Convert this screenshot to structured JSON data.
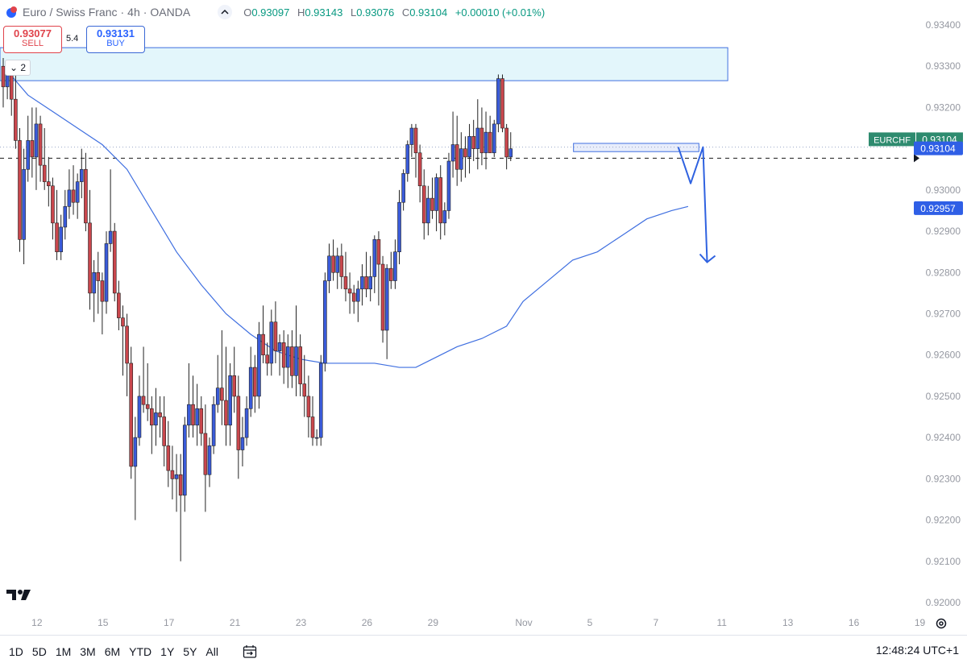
{
  "header": {
    "symbol": "Euro / Swiss Franc",
    "interval": "4h",
    "exchange": "OANDA",
    "open_label": "O",
    "open": "0.93097",
    "high_label": "H",
    "high": "0.93143",
    "low_label": "L",
    "low": "0.93076",
    "close_label": "C",
    "close": "0.93104",
    "change": "+0.00010 (+0.01%)"
  },
  "trade": {
    "sell_price": "0.93077",
    "sell_label": "SELL",
    "spread": "5.4",
    "buy_price": "0.93131",
    "buy_label": "BUY"
  },
  "collapse_count": "2",
  "bottom": {
    "ranges": [
      "1D",
      "5D",
      "1M",
      "3M",
      "6M",
      "YTD",
      "1Y",
      "5Y",
      "All"
    ],
    "clock": "12:48:24 UTC+1"
  },
  "colors": {
    "up": "#3a5bd9",
    "down": "#c9474d",
    "ma": "#3f6fe0",
    "zone": "#e3f6fb",
    "zone_border": "#3f6fe0",
    "symbol_label": "#2e8b6f",
    "price_label": "#2f5fe6"
  },
  "chart_data": {
    "type": "candlestick",
    "y_axis": {
      "range": [
        0.9195,
        0.9345
      ],
      "ticks": [
        "0.93400",
        "0.93300",
        "0.93200",
        "0.93100",
        "0.93000",
        "0.92900",
        "0.92800",
        "0.92700",
        "0.92600",
        "0.92500",
        "0.92400",
        "0.92300",
        "0.92200",
        "0.92100",
        "0.92000"
      ]
    },
    "x_axis": {
      "ticks": [
        {
          "label": "12",
          "i": 7
        },
        {
          "label": "15",
          "i": 23
        },
        {
          "label": "17",
          "i": 39
        },
        {
          "label": "21",
          "i": 55
        },
        {
          "label": "23",
          "i": 71
        },
        {
          "label": "26",
          "i": 87
        },
        {
          "label": "29",
          "i": 103
        },
        {
          "label": "Nov",
          "i": 125
        },
        {
          "label": "5",
          "i": 141
        },
        {
          "label": "7",
          "i": 157
        },
        {
          "label": "11",
          "i": 173
        },
        {
          "label": "13",
          "i": 189
        },
        {
          "label": "16",
          "i": 205
        },
        {
          "label": "19",
          "i": 221
        }
      ]
    },
    "candles": [
      [
        0.933,
        0.9332,
        0.932,
        0.9325
      ],
      [
        0.9325,
        0.9331,
        0.9322,
        0.9328
      ],
      [
        0.9328,
        0.9331,
        0.9318,
        0.9322
      ],
      [
        0.9322,
        0.9328,
        0.931,
        0.9312
      ],
      [
        0.9312,
        0.9315,
        0.9285,
        0.9288
      ],
      [
        0.9288,
        0.931,
        0.9282,
        0.9305
      ],
      [
        0.9305,
        0.9318,
        0.9302,
        0.9312
      ],
      [
        0.9312,
        0.932,
        0.9303,
        0.9308
      ],
      [
        0.9308,
        0.932,
        0.93,
        0.9316
      ],
      [
        0.9316,
        0.9318,
        0.9302,
        0.9306
      ],
      [
        0.9306,
        0.9315,
        0.93,
        0.9302
      ],
      [
        0.9302,
        0.9308,
        0.9296,
        0.9301
      ],
      [
        0.9301,
        0.9303,
        0.9288,
        0.9292
      ],
      [
        0.9292,
        0.93,
        0.9283,
        0.9285
      ],
      [
        0.9285,
        0.9294,
        0.9283,
        0.9291
      ],
      [
        0.9291,
        0.93,
        0.9288,
        0.9296
      ],
      [
        0.9296,
        0.9305,
        0.9293,
        0.93
      ],
      [
        0.93,
        0.9306,
        0.9294,
        0.9297
      ],
      [
        0.9297,
        0.9304,
        0.9293,
        0.9302
      ],
      [
        0.9302,
        0.931,
        0.9298,
        0.9305
      ],
      [
        0.9305,
        0.9309,
        0.929,
        0.9292
      ],
      [
        0.9292,
        0.93,
        0.9271,
        0.9275
      ],
      [
        0.9275,
        0.9283,
        0.9268,
        0.928
      ],
      [
        0.928,
        0.9285,
        0.927,
        0.9278
      ],
      [
        0.9278,
        0.928,
        0.9265,
        0.9273
      ],
      [
        0.9273,
        0.929,
        0.927,
        0.9287
      ],
      [
        0.9287,
        0.9305,
        0.9285,
        0.929
      ],
      [
        0.929,
        0.9292,
        0.9273,
        0.9275
      ],
      [
        0.9275,
        0.9278,
        0.9266,
        0.9269
      ],
      [
        0.9269,
        0.9272,
        0.9255,
        0.9267
      ],
      [
        0.9267,
        0.927,
        0.925,
        0.9258
      ],
      [
        0.9258,
        0.9262,
        0.923,
        0.9233
      ],
      [
        0.9233,
        0.9245,
        0.922,
        0.924
      ],
      [
        0.924,
        0.9255,
        0.9238,
        0.925
      ],
      [
        0.925,
        0.9262,
        0.9246,
        0.9248
      ],
      [
        0.9248,
        0.9258,
        0.9244,
        0.9247
      ],
      [
        0.9247,
        0.925,
        0.9236,
        0.9243
      ],
      [
        0.9243,
        0.9252,
        0.9238,
        0.9246
      ],
      [
        0.9246,
        0.925,
        0.924,
        0.9245
      ],
      [
        0.9245,
        0.925,
        0.9233,
        0.9238
      ],
      [
        0.9238,
        0.9244,
        0.9228,
        0.9232
      ],
      [
        0.9232,
        0.9238,
        0.9225,
        0.923
      ],
      [
        0.923,
        0.9236,
        0.9222,
        0.9231
      ],
      [
        0.9231,
        0.9236,
        0.921,
        0.9226
      ],
      [
        0.9226,
        0.9245,
        0.9222,
        0.9243
      ],
      [
        0.9243,
        0.9258,
        0.924,
        0.9248
      ],
      [
        0.9248,
        0.9255,
        0.924,
        0.9243
      ],
      [
        0.9243,
        0.9253,
        0.9238,
        0.9247
      ],
      [
        0.9247,
        0.925,
        0.9238,
        0.9241
      ],
      [
        0.9241,
        0.9248,
        0.9222,
        0.9231
      ],
      [
        0.9231,
        0.924,
        0.9228,
        0.9238
      ],
      [
        0.9238,
        0.925,
        0.9236,
        0.9248
      ],
      [
        0.9248,
        0.926,
        0.9246,
        0.9252
      ],
      [
        0.9252,
        0.9266,
        0.9243,
        0.9249
      ],
      [
        0.9249,
        0.9262,
        0.9238,
        0.9243
      ],
      [
        0.9243,
        0.9258,
        0.9238,
        0.9255
      ],
      [
        0.9255,
        0.9262,
        0.9246,
        0.925
      ],
      [
        0.925,
        0.9255,
        0.923,
        0.9237
      ],
      [
        0.9237,
        0.9245,
        0.9233,
        0.924
      ],
      [
        0.924,
        0.925,
        0.9238,
        0.9247
      ],
      [
        0.9247,
        0.9262,
        0.9245,
        0.9257
      ],
      [
        0.9257,
        0.926,
        0.9246,
        0.925
      ],
      [
        0.925,
        0.9268,
        0.9247,
        0.9265
      ],
      [
        0.9265,
        0.9272,
        0.9258,
        0.926
      ],
      [
        0.926,
        0.9263,
        0.9255,
        0.9258
      ],
      [
        0.9258,
        0.9271,
        0.9255,
        0.9268
      ],
      [
        0.9268,
        0.9273,
        0.9258,
        0.9261
      ],
      [
        0.9261,
        0.9265,
        0.9255,
        0.9263
      ],
      [
        0.9263,
        0.9266,
        0.9253,
        0.9257
      ],
      [
        0.9257,
        0.9265,
        0.9252,
        0.9262
      ],
      [
        0.9262,
        0.9266,
        0.9252,
        0.9255
      ],
      [
        0.9255,
        0.9272,
        0.925,
        0.9262
      ],
      [
        0.9262,
        0.9265,
        0.925,
        0.9253
      ],
      [
        0.9253,
        0.926,
        0.9245,
        0.925
      ],
      [
        0.925,
        0.9255,
        0.924,
        0.9245
      ],
      [
        0.9245,
        0.925,
        0.9238,
        0.924
      ],
      [
        0.924,
        0.9242,
        0.9238,
        0.924
      ],
      [
        0.924,
        0.926,
        0.9238,
        0.9258
      ],
      [
        0.9258,
        0.928,
        0.9256,
        0.9278
      ],
      [
        0.9278,
        0.9287,
        0.9275,
        0.9284
      ],
      [
        0.9284,
        0.9288,
        0.9278,
        0.928
      ],
      [
        0.928,
        0.9286,
        0.9276,
        0.9284
      ],
      [
        0.9284,
        0.9287,
        0.9276,
        0.9279
      ],
      [
        0.9279,
        0.9285,
        0.9273,
        0.9276
      ],
      [
        0.9276,
        0.928,
        0.927,
        0.9275
      ],
      [
        0.9275,
        0.9277,
        0.927,
        0.9273
      ],
      [
        0.9273,
        0.9278,
        0.9268,
        0.9276
      ],
      [
        0.9276,
        0.9282,
        0.9272,
        0.9279
      ],
      [
        0.9279,
        0.9285,
        0.9274,
        0.9276
      ],
      [
        0.9276,
        0.9284,
        0.9273,
        0.9279
      ],
      [
        0.9279,
        0.9289,
        0.9275,
        0.9288
      ],
      [
        0.9288,
        0.929,
        0.9272,
        0.9282
      ],
      [
        0.9282,
        0.9284,
        0.9263,
        0.9266
      ],
      [
        0.9266,
        0.9282,
        0.9259,
        0.9281
      ],
      [
        0.9281,
        0.9285,
        0.9276,
        0.9278
      ],
      [
        0.9278,
        0.9288,
        0.9276,
        0.9285
      ],
      [
        0.9285,
        0.93,
        0.9282,
        0.9297
      ],
      [
        0.9297,
        0.9305,
        0.9295,
        0.9304
      ],
      [
        0.9304,
        0.9312,
        0.9302,
        0.9311
      ],
      [
        0.9311,
        0.9316,
        0.9308,
        0.9315
      ],
      [
        0.9315,
        0.9316,
        0.9303,
        0.9309
      ],
      [
        0.9309,
        0.9311,
        0.9297,
        0.9301
      ],
      [
        0.9301,
        0.9305,
        0.9288,
        0.9292
      ],
      [
        0.9292,
        0.9301,
        0.9289,
        0.9298
      ],
      [
        0.9298,
        0.9303,
        0.9293,
        0.9295
      ],
      [
        0.9295,
        0.9304,
        0.929,
        0.9303
      ],
      [
        0.9303,
        0.9306,
        0.9288,
        0.9292
      ],
      [
        0.9292,
        0.9297,
        0.9289,
        0.9295
      ],
      [
        0.9295,
        0.9309,
        0.9293,
        0.9307
      ],
      [
        0.9307,
        0.9319,
        0.9303,
        0.9311
      ],
      [
        0.9311,
        0.9318,
        0.9301,
        0.9305
      ],
      [
        0.9305,
        0.9314,
        0.9302,
        0.931
      ],
      [
        0.931,
        0.9313,
        0.9303,
        0.9308
      ],
      [
        0.9308,
        0.9316,
        0.9304,
        0.9313
      ],
      [
        0.9313,
        0.9317,
        0.9307,
        0.931
      ],
      [
        0.931,
        0.9322,
        0.9305,
        0.9315
      ],
      [
        0.9315,
        0.932,
        0.9306,
        0.9309
      ],
      [
        0.9309,
        0.9319,
        0.9305,
        0.9314
      ],
      [
        0.9314,
        0.9318,
        0.9309,
        0.9309
      ],
      [
        0.9309,
        0.9317,
        0.9308,
        0.9316
      ],
      [
        0.9316,
        0.9328,
        0.9314,
        0.9327
      ],
      [
        0.9327,
        0.9328,
        0.9314,
        0.9315
      ],
      [
        0.9315,
        0.9316,
        0.9305,
        0.9308
      ],
      [
        0.9308,
        0.9314,
        0.9307,
        0.931
      ]
    ],
    "moving_average": {
      "points": [
        [
          0,
          0.933
        ],
        [
          6,
          0.9323
        ],
        [
          12,
          0.9319
        ],
        [
          18,
          0.9315
        ],
        [
          24,
          0.9311
        ],
        [
          30,
          0.9305
        ],
        [
          36,
          0.9295
        ],
        [
          42,
          0.9285
        ],
        [
          48,
          0.9277
        ],
        [
          54,
          0.927
        ],
        [
          60,
          0.9265
        ],
        [
          66,
          0.9261
        ],
        [
          72,
          0.9259
        ],
        [
          78,
          0.9258
        ],
        [
          84,
          0.9258
        ],
        [
          90,
          0.9258
        ],
        [
          96,
          0.9257
        ],
        [
          100,
          0.9257
        ],
        [
          104,
          0.9259
        ],
        [
          110,
          0.9262
        ],
        [
          116,
          0.9264
        ],
        [
          122,
          0.9267
        ],
        [
          126,
          0.9273
        ],
        [
          132,
          0.9278
        ],
        [
          138,
          0.9283
        ],
        [
          144,
          0.9285
        ],
        [
          150,
          0.9289
        ],
        [
          156,
          0.9293
        ],
        [
          162,
          0.9295
        ],
        [
          166,
          0.9296
        ]
      ]
    },
    "zones": [
      {
        "from_i": 0,
        "to_i": 176,
        "top": 0.93345,
        "bottom": 0.93265
      },
      {
        "from_i": 139,
        "to_i": 169,
        "top": 0.93113,
        "bottom": 0.93093
      }
    ],
    "horizontal_lines": [
      {
        "price": 0.93077,
        "style": "dashed",
        "color": "#333333"
      },
      {
        "price": 0.93104,
        "style": "dotted",
        "color": "#9aa6c8"
      }
    ],
    "arrow_path": [
      [
        164,
        0.93104
      ],
      [
        167,
        0.93016
      ],
      [
        170,
        0.93104
      ],
      [
        171,
        0.92825
      ]
    ],
    "price_labels": [
      {
        "text": "EURCHF",
        "value": "0.93104",
        "price": 0.9312,
        "kind": "symbol"
      },
      {
        "text": "",
        "value": "0.93104",
        "price": 0.93104,
        "kind": "price"
      },
      {
        "text": "",
        "value": "0.92957",
        "price": 0.92957,
        "kind": "ma"
      }
    ]
  }
}
